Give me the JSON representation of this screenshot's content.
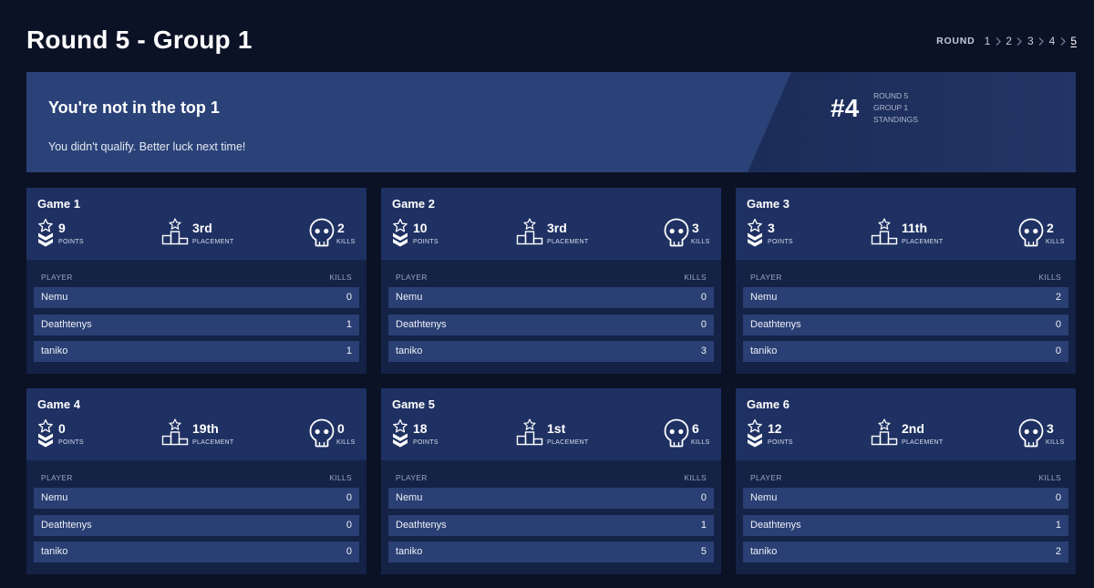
{
  "header": {
    "title": "Round 5 - Group 1",
    "round_label": "ROUND",
    "rounds": [
      "1",
      "2",
      "3",
      "4",
      "5"
    ],
    "active_round": "5"
  },
  "banner": {
    "title": "You're not in the top 1",
    "subtitle": "You didn't qualify. Better luck next time!",
    "rank": "#4",
    "meta": [
      "ROUND 5",
      "GROUP 1",
      "STANDINGS"
    ]
  },
  "labels": {
    "points": "POINTS",
    "placement": "PLACEMENT",
    "kills": "KILLS",
    "player_col": "PLAYER",
    "kills_col": "KILLS"
  },
  "games": [
    {
      "title": "Game 1",
      "points": "9",
      "placement": "3rd",
      "kills": "2",
      "players": [
        {
          "name": "Nemu",
          "kills": "0"
        },
        {
          "name": "Deathtenys",
          "kills": "1"
        },
        {
          "name": "taniko",
          "kills": "1"
        }
      ]
    },
    {
      "title": "Game 2",
      "points": "10",
      "placement": "3rd",
      "kills": "3",
      "players": [
        {
          "name": "Nemu",
          "kills": "0"
        },
        {
          "name": "Deathtenys",
          "kills": "0"
        },
        {
          "name": "taniko",
          "kills": "3"
        }
      ]
    },
    {
      "title": "Game 3",
      "points": "3",
      "placement": "11th",
      "kills": "2",
      "players": [
        {
          "name": "Nemu",
          "kills": "2"
        },
        {
          "name": "Deathtenys",
          "kills": "0"
        },
        {
          "name": "taniko",
          "kills": "0"
        }
      ]
    },
    {
      "title": "Game 4",
      "points": "0",
      "placement": "19th",
      "kills": "0",
      "players": [
        {
          "name": "Nemu",
          "kills": "0"
        },
        {
          "name": "Deathtenys",
          "kills": "0"
        },
        {
          "name": "taniko",
          "kills": "0"
        }
      ]
    },
    {
      "title": "Game 5",
      "points": "18",
      "placement": "1st",
      "kills": "6",
      "players": [
        {
          "name": "Nemu",
          "kills": "0"
        },
        {
          "name": "Deathtenys",
          "kills": "1"
        },
        {
          "name": "taniko",
          "kills": "5"
        }
      ]
    },
    {
      "title": "Game 6",
      "points": "12",
      "placement": "2nd",
      "kills": "3",
      "players": [
        {
          "name": "Nemu",
          "kills": "0"
        },
        {
          "name": "Deathtenys",
          "kills": "1"
        },
        {
          "name": "taniko",
          "kills": "2"
        }
      ]
    }
  ],
  "icons": {
    "points": "star-chevron-badge-icon",
    "placement": "podium-star-icon",
    "kills": "skull-icon",
    "separator": "chevron-right-icon"
  }
}
